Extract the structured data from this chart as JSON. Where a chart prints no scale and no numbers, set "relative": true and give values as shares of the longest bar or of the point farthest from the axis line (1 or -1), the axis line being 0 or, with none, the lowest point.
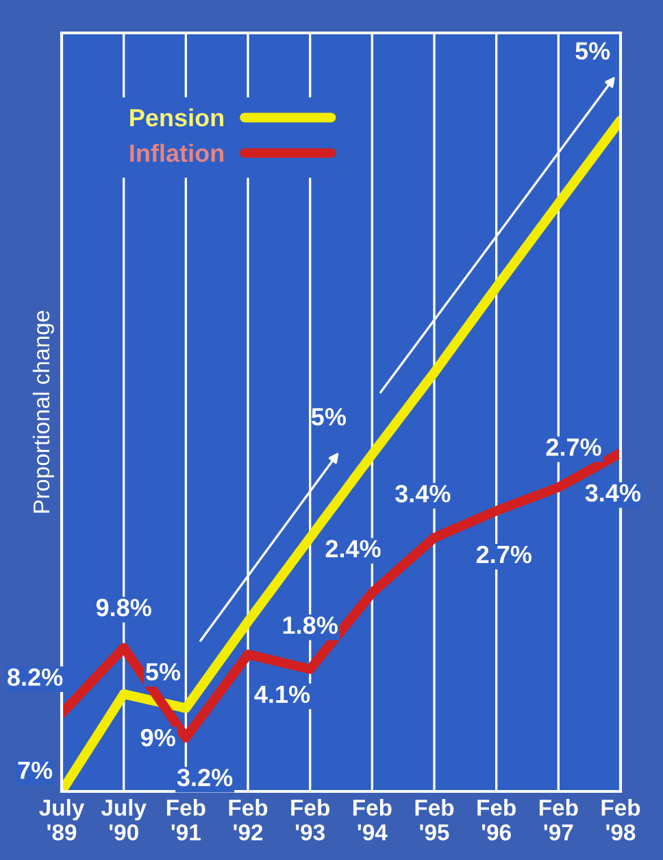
{
  "chart_data": {
    "type": "line",
    "relative": true,
    "ylabel": "Proportional change",
    "categories": [
      "July\n'89",
      "July\n'90",
      "Feb\n'91",
      "Feb\n'92",
      "Feb\n'93",
      "Feb\n'94",
      "Feb\n'95",
      "Feb\n'96",
      "Feb\n'97",
      "Feb\n'98"
    ],
    "series": [
      {
        "name": "Pension",
        "color": "#f2ec00",
        "values": [
          0,
          0.145,
          0.124,
          0.253,
          0.378,
          0.502,
          0.624,
          0.751,
          0.876,
          1
        ]
      },
      {
        "name": "Inflation",
        "color": "#d21f1f",
        "values": [
          0.116,
          0.214,
          0.08,
          0.204,
          0.182,
          0.296,
          0.378,
          0.418,
          0.453,
          0.504
        ]
      }
    ],
    "annotations": [
      {
        "text": "7%",
        "x": "July\n'89",
        "y": 0
      },
      {
        "text": "9%",
        "x": "July\n'90",
        "y": 0.145
      },
      {
        "text": "5%",
        "x": "Feb\n'91",
        "y": 0.124
      },
      {
        "text": "8.2%",
        "x": "July\n'89",
        "y": 0.116
      },
      {
        "text": "9.8%",
        "x": "July\n'90",
        "y": 0.214
      },
      {
        "text": "3.2%",
        "x": "Feb\n'91",
        "y": 0.08
      },
      {
        "text": "4.1%",
        "x": "Feb\n'92",
        "y": 0.204
      },
      {
        "text": "1.8%",
        "x": "Feb\n'93",
        "y": 0.182
      },
      {
        "text": "2.4%",
        "x": "Feb\n'94",
        "y": 0.296
      },
      {
        "text": "3.4%",
        "x": "Feb\n'95",
        "y": 0.378
      },
      {
        "text": "2.7%",
        "x": "Feb\n'96",
        "y": 0.418
      },
      {
        "text": "2.7%",
        "x": "Feb\n'97",
        "y": 0.453
      },
      {
        "text": "3.4%",
        "x": "Feb\n'98",
        "y": 0.504
      },
      "5%",
      "5%"
    ],
    "grid": "x",
    "legend": "top left",
    "marker": "none",
    "line_style": "solid"
  }
}
